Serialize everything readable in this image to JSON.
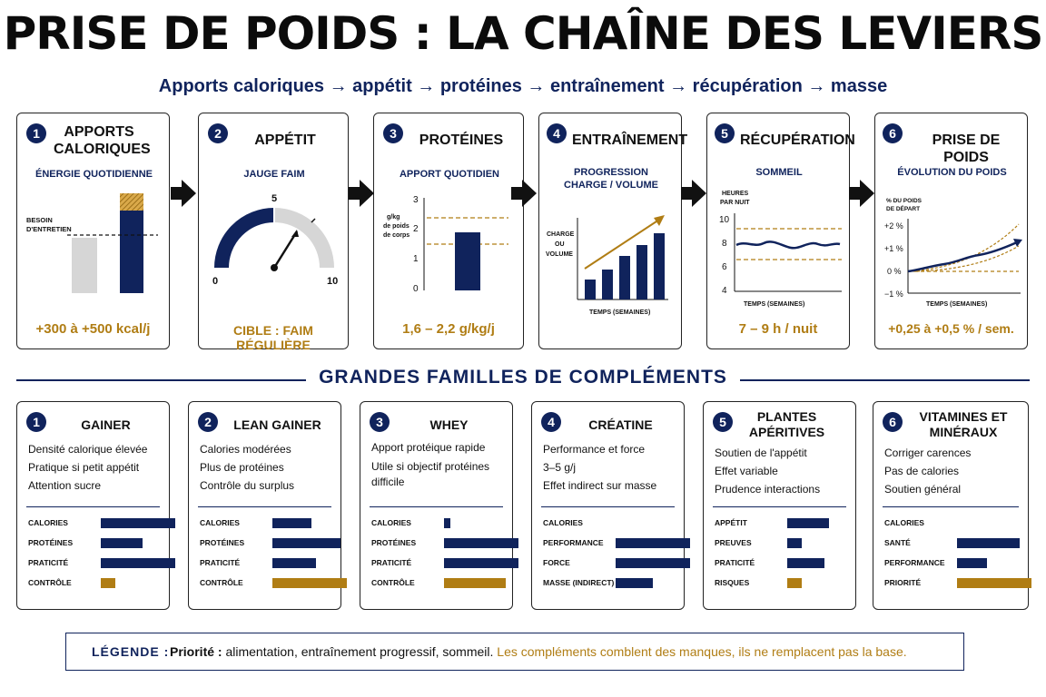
{
  "title": "PRISE DE POIDS : LA CHAÎNE DES LEVIERS",
  "subtitle": "Apports caloriques → appétit → protéines → entraînement → récupération → masse",
  "colors": {
    "navy": "#10235c",
    "gold": "#b07d14",
    "grey": "#d6d6d6"
  },
  "levers": [
    {
      "num": "1",
      "title": "APPORTS CALORIQUES",
      "subtitle": "ÉNERGIE QUOTIDIENNE",
      "bottom": "+300 à +500 kcal/j",
      "chart": {
        "label": "BESOIN D'ENTRETIEN"
      }
    },
    {
      "num": "2",
      "title": "APPÉTIT",
      "subtitle": "JAUGE FAIM",
      "bottom": "CIBLE : FAIM RÉGULIÈRE",
      "gauge": {
        "min": "0",
        "mid": "5",
        "max": "10",
        "needle_value": 6.5
      }
    },
    {
      "num": "3",
      "title": "PROTÉINES",
      "subtitle": "APPORT QUOTIDIEN",
      "bottom": "1,6 – 2,2 g/kg/j",
      "chart": {
        "ylabel": "g/kg de poids de corps",
        "ticks": [
          "3",
          "2",
          "1",
          "0"
        ]
      }
    },
    {
      "num": "4",
      "title": "ENTRAÎNEMENT",
      "subtitle": "PROGRESSION CHARGE / VOLUME",
      "bottom": "",
      "chart": {
        "ylabel": "CHARGE OU VOLUME",
        "xlabel": "TEMPS (SEMAINES)"
      }
    },
    {
      "num": "5",
      "title": "RÉCUPÉRATION",
      "subtitle": "SOMMEIL",
      "bottom": "7 – 9 h / nuit",
      "chart": {
        "ylabel": "HEURES PAR NUIT",
        "xlabel": "TEMPS (SEMAINES)",
        "ticks": [
          "10",
          "8",
          "6",
          "4"
        ]
      }
    },
    {
      "num": "6",
      "title": "PRISE DE POIDS",
      "subtitle": "ÉVOLUTION DU POIDS",
      "bottom": "+0,25 à +0,5 % / sem.",
      "chart": {
        "ylabel": "% DU POIDS DE DÉPART",
        "xlabel": "TEMPS (SEMAINES)",
        "ticks": [
          "+2 %",
          "+1 %",
          "0 %",
          "−1 %"
        ]
      }
    }
  ],
  "section_title": "GRANDES FAMILLES DE COMPLÉMENTS",
  "supplements": [
    {
      "num": "1",
      "title": "GAINER",
      "lines": [
        "Densité calorique élevée",
        "Pratique si petit appétit",
        "Attention sucre"
      ],
      "bars": [
        {
          "label": "CALORIES",
          "value": 1.0,
          "color": "navy"
        },
        {
          "label": "PROTÉINES",
          "value": 0.56,
          "color": "navy"
        },
        {
          "label": "PRATICITÉ",
          "value": 1.0,
          "color": "navy"
        },
        {
          "label": "CONTRÔLE",
          "value": 0.19,
          "color": "gold"
        }
      ]
    },
    {
      "num": "2",
      "title": "LEAN GAINER",
      "lines": [
        "Calories modérées",
        "Plus de protéines",
        "Contrôle du surplus"
      ],
      "bars": [
        {
          "label": "CALORIES",
          "value": 0.52,
          "color": "navy"
        },
        {
          "label": "PROTÉINES",
          "value": 0.91,
          "color": "navy"
        },
        {
          "label": "PRATICITÉ",
          "value": 0.59,
          "color": "navy"
        },
        {
          "label": "CONTRÔLE",
          "value": 1.0,
          "color": "gold"
        }
      ]
    },
    {
      "num": "3",
      "title": "WHEY",
      "lines": [
        "Apport protéique rapide",
        "Utile si objectif protéines difficile"
      ],
      "bars": [
        {
          "label": "CALORIES",
          "value": 0.09,
          "color": "navy"
        },
        {
          "label": "PROTÉINES",
          "value": 1.0,
          "color": "navy"
        },
        {
          "label": "PRATICITÉ",
          "value": 1.0,
          "color": "navy"
        },
        {
          "label": "CONTRÔLE",
          "value": 0.83,
          "color": "gold"
        }
      ]
    },
    {
      "num": "4",
      "title": "CRÉATINE",
      "lines": [
        "Performance et force",
        "3–5 g/j",
        "Effet indirect sur masse"
      ],
      "bars": [
        {
          "label": "CALORIES",
          "value": 0.0,
          "color": "navy"
        },
        {
          "label": "PERFORMANCE",
          "value": 1.0,
          "color": "navy"
        },
        {
          "label": "FORCE",
          "value": 1.0,
          "color": "navy"
        },
        {
          "label": "MASSE (INDIRECT)",
          "value": 0.5,
          "color": "navy"
        }
      ]
    },
    {
      "num": "5",
      "title": "PLANTES APÉRITIVES",
      "lines": [
        "Soutien de l'appétit",
        "Effet variable",
        "Prudence interactions"
      ],
      "bars": [
        {
          "label": "APPÉTIT",
          "value": 0.56,
          "color": "navy"
        },
        {
          "label": "PREUVES",
          "value": 0.2,
          "color": "navy"
        },
        {
          "label": "PRATICITÉ",
          "value": 0.5,
          "color": "navy"
        },
        {
          "label": "RISQUES",
          "value": 0.2,
          "color": "gold"
        }
      ]
    },
    {
      "num": "6",
      "title": "VITAMINES ET MINÉRAUX",
      "lines": [
        "Corriger carences",
        "Pas de calories",
        "Soutien général"
      ],
      "bars": [
        {
          "label": "CALORIES",
          "value": 0.0,
          "color": "navy"
        },
        {
          "label": "SANTÉ",
          "value": 0.84,
          "color": "navy"
        },
        {
          "label": "PERFORMANCE",
          "value": 0.4,
          "color": "navy"
        },
        {
          "label": "PRIORITÉ",
          "value": 1.0,
          "color": "gold"
        }
      ]
    }
  ],
  "legend": {
    "label": "LÉGENDE :",
    "prefix": "Priorité :",
    "text": " alimentation, entraînement progressif, sommeil.",
    "gold_text": "Les compléments comblent des manques, ils ne remplacent pas la base."
  }
}
